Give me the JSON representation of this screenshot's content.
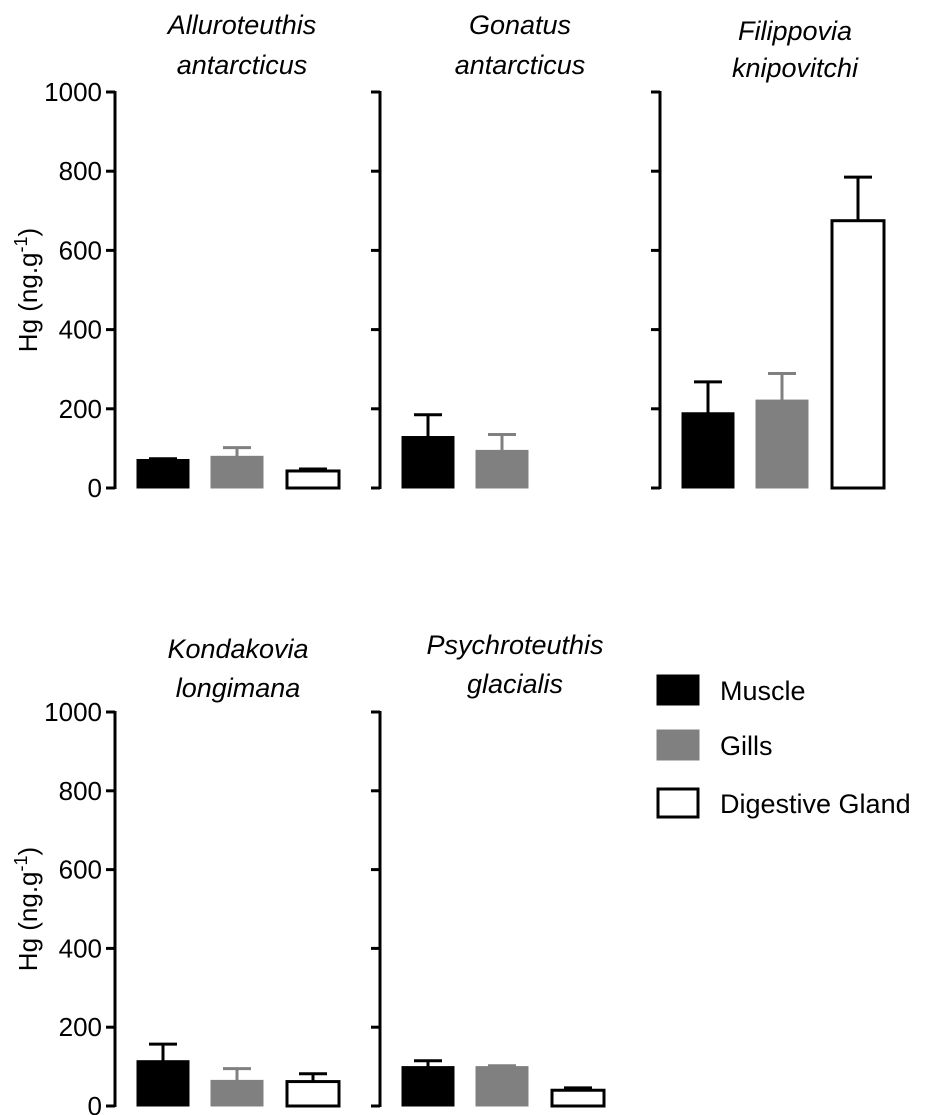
{
  "colors": {
    "muscle": "#000000",
    "gills": "#808080",
    "digestive_gland": "#ffffff",
    "axis": "#000000"
  },
  "legend": [
    {
      "name": "Muscle",
      "color": "#000000"
    },
    {
      "name": "Gills",
      "color": "#808080"
    },
    {
      "name": "Digestive Gland",
      "color": "#ffffff"
    }
  ],
  "chart_data": [
    {
      "type": "bar",
      "title_lines": [
        "Alluroteuthis",
        "antarcticus"
      ],
      "categories": [
        "Muscle",
        "Gills",
        "Digestive Gland"
      ],
      "values": [
        72,
        80,
        43
      ],
      "errors": [
        2,
        22,
        5
      ],
      "ylabel": "Hg (ng.g-1)",
      "ylim": [
        0,
        1000
      ],
      "yticks": [
        "0",
        "200",
        "400",
        "600",
        "800",
        "1000"
      ]
    },
    {
      "type": "bar",
      "title_lines": [
        "Gonatus",
        "antarcticus"
      ],
      "categories": [
        "Muscle",
        "Gills",
        "Digestive Gland"
      ],
      "values": [
        130,
        95,
        null
      ],
      "errors": [
        55,
        40,
        null
      ],
      "ylim": [
        0,
        1000
      ]
    },
    {
      "type": "bar",
      "title_lines": [
        "Filippovia",
        "knipovitchi"
      ],
      "categories": [
        "Muscle",
        "Gills",
        "Digestive Gland"
      ],
      "values": [
        190,
        222,
        675
      ],
      "errors": [
        78,
        67,
        110
      ],
      "ylim": [
        0,
        1000
      ]
    },
    {
      "type": "bar",
      "title_lines": [
        "Kondakovia",
        "longimana"
      ],
      "categories": [
        "Muscle",
        "Gills",
        "Digestive Gland"
      ],
      "values": [
        115,
        65,
        62
      ],
      "errors": [
        42,
        30,
        20
      ],
      "ylabel": "Hg (ng.g-1)",
      "ylim": [
        0,
        1000
      ],
      "yticks": [
        "0",
        "200",
        "400",
        "600",
        "800",
        "1000"
      ]
    },
    {
      "type": "bar",
      "title_lines": [
        "Psychroteuthis",
        "glacialis"
      ],
      "categories": [
        "Muscle",
        "Gills",
        "Digestive Gland"
      ],
      "values": [
        100,
        100,
        40
      ],
      "errors": [
        15,
        2,
        6
      ],
      "ylim": [
        0,
        1000
      ]
    }
  ]
}
